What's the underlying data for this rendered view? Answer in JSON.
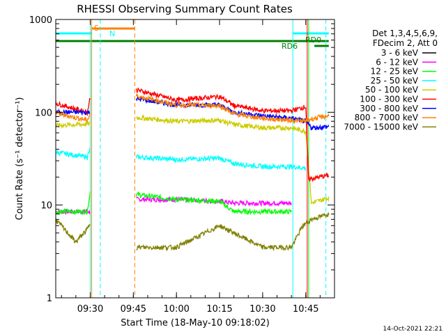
{
  "chart_data": {
    "type": "line",
    "title": "RHESSI Observing Summary Count Rates",
    "xlabel": "Start Time (18-May-10 09:18:02)",
    "ylabel": "Count Rate (s⁻¹ detector⁻¹)",
    "yscale": "log",
    "ylim": [
      1,
      1000
    ],
    "xlim_minutes_after_0900": [
      18,
      56
    ],
    "x_ticks": [
      {
        "m": 30,
        "label": "09:30"
      },
      {
        "m": 45,
        "label": "09:45"
      },
      {
        "m": 60,
        "label": "10:00"
      },
      {
        "m": 75,
        "label": "10:15"
      },
      {
        "m": 90,
        "label": "10:30"
      },
      {
        "m": 105,
        "label": "10:45"
      }
    ],
    "y_ticks": [
      {
        "v": 1,
        "label": "1"
      },
      {
        "v": 10,
        "label": "10"
      },
      {
        "v": 100,
        "label": "100"
      },
      {
        "v": 1000,
        "label": "1000"
      }
    ],
    "legend_header": [
      "Det 1,3,4,5,6,9,",
      "FDecim 2, Att 0"
    ],
    "legend_position": "right",
    "series": [
      {
        "name": "3 - 6 keV",
        "color": "#000000",
        "x": [],
        "y": []
      },
      {
        "name": "6 - 12 keV",
        "color": "#ff00ff",
        "x": [
          18,
          30,
          31,
          44,
          46,
          60,
          75,
          80,
          90,
          100,
          104,
          107,
          113
        ],
        "y": [
          8.5,
          8.5,
          null,
          null,
          11.5,
          11.5,
          11,
          10.5,
          10.5,
          10.5,
          null,
          null,
          null
        ]
      },
      {
        "name": "12 - 25 keV",
        "color": "#00ff00",
        "x": [
          18,
          29,
          30,
          31,
          44,
          46,
          60,
          75,
          80,
          90,
          100,
          104,
          106,
          113
        ],
        "y": [
          8.5,
          8.5,
          14,
          null,
          null,
          13,
          11.5,
          11,
          8.5,
          8.5,
          8.5,
          null,
          null,
          null
        ]
      },
      {
        "name": "25 - 50 keV",
        "color": "#00ffff",
        "x": [
          18,
          29,
          30,
          31,
          44,
          46,
          60,
          75,
          80,
          90,
          100,
          105,
          106,
          113
        ],
        "y": [
          37,
          33,
          40,
          null,
          null,
          33,
          31,
          32,
          28,
          26,
          26,
          25,
          null,
          null
        ]
      },
      {
        "name": "50 - 100 keV",
        "color": "#cccc00",
        "x": [
          18,
          30,
          31,
          44,
          46,
          60,
          75,
          80,
          90,
          100,
          105,
          107,
          113
        ],
        "y": [
          72,
          75,
          null,
          null,
          88,
          80,
          82,
          74,
          68,
          68,
          62,
          10.5,
          12
        ]
      },
      {
        "name": "100 - 300 keV",
        "color": "#ff0000",
        "x": [
          18,
          29,
          30,
          31,
          44,
          46,
          60,
          75,
          80,
          90,
          100,
          105,
          106,
          113
        ],
        "y": [
          125,
          100,
          145,
          null,
          null,
          175,
          135,
          148,
          118,
          104,
          104,
          115,
          19,
          21
        ]
      },
      {
        "name": "300 - 800 keV",
        "color": "#0000ff",
        "x": [
          18,
          30,
          31,
          44,
          46,
          60,
          75,
          80,
          90,
          100,
          105,
          107,
          113
        ],
        "y": [
          100,
          100,
          null,
          null,
          140,
          120,
          120,
          100,
          92,
          86,
          80,
          68,
          70
        ]
      },
      {
        "name": "800 - 7000 keV",
        "color": "#ff8000",
        "x": [
          18,
          29,
          30,
          31,
          44,
          46,
          60,
          75,
          80,
          90,
          100,
          105,
          107,
          113
        ],
        "y": [
          98,
          82,
          96,
          null,
          null,
          150,
          120,
          118,
          96,
          86,
          82,
          80,
          85,
          92
        ]
      },
      {
        "name": "7000 - 15000 keV",
        "color": "#808000",
        "x": [
          18,
          25,
          29,
          30,
          31,
          44,
          46,
          60,
          75,
          80,
          90,
          100,
          104,
          107,
          113
        ],
        "y": [
          7,
          4,
          5.5,
          6.5,
          null,
          null,
          3.5,
          3.5,
          6,
          5,
          3.5,
          3.5,
          6,
          7,
          8
        ]
      }
    ],
    "annotations": [
      {
        "text": "S",
        "color": "#ff8000"
      },
      {
        "text": "N",
        "color": "#00ffff"
      },
      {
        "text": "RD0",
        "color": "#008000"
      },
      {
        "text": "RD6",
        "color": "#008000"
      }
    ],
    "flag_bars": [
      {
        "label": "S",
        "color": "#ff8000",
        "x0": 30.5,
        "x1": 45.5,
        "level": 1
      },
      {
        "label": "N",
        "color": "#00ffff",
        "x0": 18,
        "x1": 30.5,
        "level": 2
      },
      {
        "label": "RD0",
        "color": "#00ffff",
        "x0": 100.5,
        "x1": 113,
        "level": 2
      },
      {
        "label": "RD0",
        "color": "#008000",
        "x0": 18,
        "x1": 113,
        "level": 3
      },
      {
        "label": "RD6",
        "color": "#008000",
        "x0": 108,
        "x1": 113,
        "level": 4
      }
    ],
    "vertical_markers": [
      {
        "x": 30.5,
        "color": "#ff8000",
        "style": "solid"
      },
      {
        "x": 30,
        "color": "#00ffff",
        "style": "solid"
      },
      {
        "x": 33.5,
        "color": "#00ffff",
        "style": "dashed"
      },
      {
        "x": 45.5,
        "color": "#ff8000",
        "style": "dashed"
      },
      {
        "x": 100.5,
        "color": "#00ffff",
        "style": "solid"
      },
      {
        "x": 112,
        "color": "#00ffff",
        "style": "dashed"
      },
      {
        "x": 106,
        "color": "#00ff00",
        "style": "solid"
      },
      {
        "x": 105.5,
        "color": "#ff0000",
        "style": "solid"
      }
    ],
    "timestamp": "14-Oct-2021 22:21"
  }
}
